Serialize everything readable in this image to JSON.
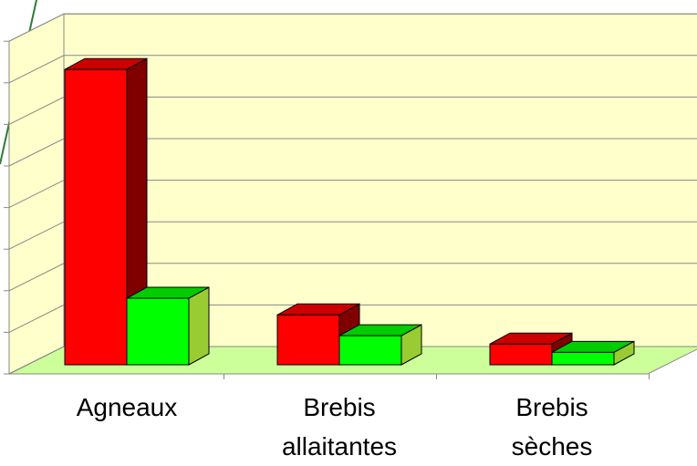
{
  "chart_data": {
    "type": "bar3d",
    "categories": [
      "Agneaux",
      "Brebis allaitantes",
      "Brebis sèches"
    ],
    "series": [
      {
        "color": "#ff0000",
        "values": [
          7.1,
          1.2,
          0.5
        ]
      },
      {
        "color": "#00ff00",
        "values": [
          1.6,
          0.7,
          0.3
        ]
      }
    ],
    "ylim": [
      0,
      8
    ],
    "yticks": [
      0,
      1,
      2,
      3,
      4,
      5,
      6,
      7,
      8
    ],
    "grid": true
  }
}
